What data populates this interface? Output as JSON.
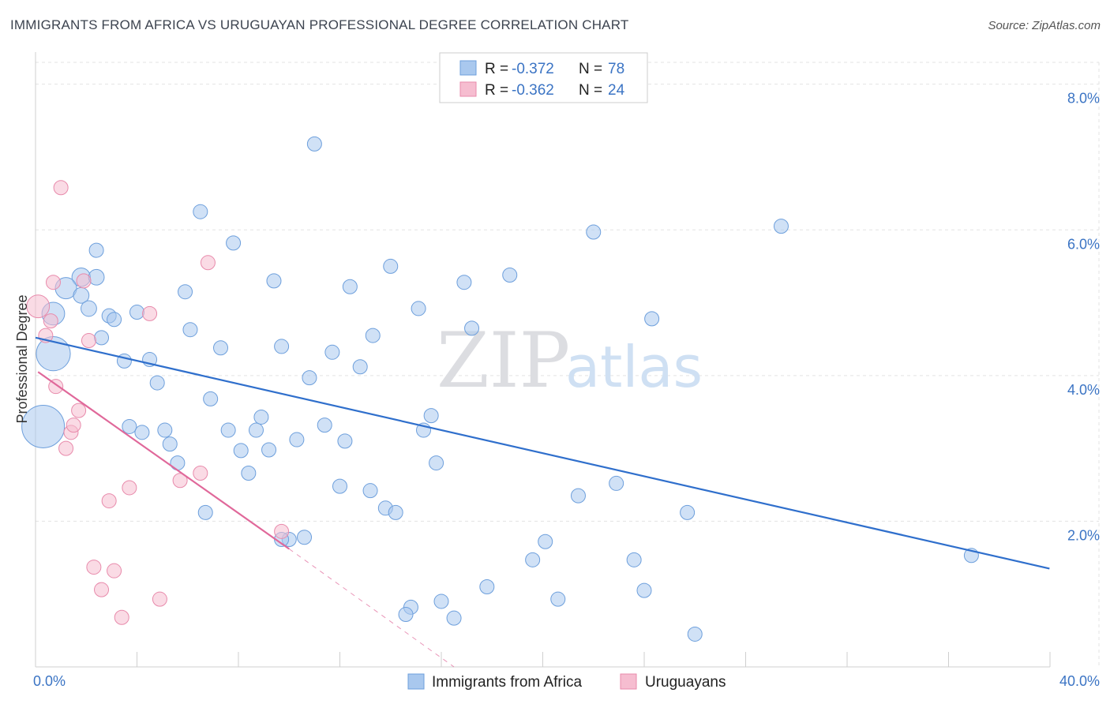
{
  "title": "IMMIGRANTS FROM AFRICA VS URUGUAYAN PROFESSIONAL DEGREE CORRELATION CHART",
  "source": "Source: ZipAtlas.com",
  "watermark": {
    "zip": "ZIP",
    "atlas": "atlas"
  },
  "colors": {
    "blue_fill": "#a9c8ee",
    "blue_stroke": "#6d9fdc",
    "blue_line": "#2f6fcc",
    "pink_fill": "#f6bdd0",
    "pink_stroke": "#e88aab",
    "pink_line": "#e0689a",
    "grid": "#e3e3e3",
    "axis_text": "#3b74c4"
  },
  "legend": {
    "rows": [
      {
        "r_label": "R =",
        "r_value": "-0.372",
        "n_label": "N =",
        "n_value": "78"
      },
      {
        "r_label": "R =",
        "r_value": "-0.362",
        "n_label": "N =",
        "n_value": "24"
      }
    ]
  },
  "bottom_legend": [
    "Immigrants from Africa",
    "Uruguayans"
  ],
  "chart_data": {
    "type": "scatter",
    "title": "IMMIGRANTS FROM AFRICA VS URUGUAYAN PROFESSIONAL DEGREE CORRELATION CHART",
    "xlabel": "",
    "ylabel": "Professional Degree",
    "xlim": [
      0,
      40
    ],
    "ylim": [
      0,
      8.3
    ],
    "x_tick_labels": [
      "0.0%",
      "40.0%"
    ],
    "y_ticks": [
      2,
      4,
      6,
      8
    ],
    "y_tick_labels": [
      "2.0%",
      "4.0%",
      "6.0%",
      "8.0%"
    ],
    "grid": true,
    "legend_position": "top-center",
    "series": [
      {
        "name": "Immigrants from Africa",
        "color": "#a9c8ee",
        "trend": {
          "x": [
            0,
            40
          ],
          "y": [
            4.52,
            1.35
          ]
        },
        "points": [
          [
            0.3,
            3.3,
            3
          ],
          [
            0.7,
            4.3,
            2.4
          ],
          [
            0.7,
            4.85,
            1.6
          ],
          [
            1.8,
            5.35,
            1.3
          ],
          [
            1.2,
            5.2,
            1.5
          ],
          [
            2.4,
            5.35,
            1.1
          ],
          [
            1.8,
            5.1,
            1.1
          ],
          [
            2.1,
            4.92,
            1.1
          ],
          [
            2.4,
            5.72,
            1
          ],
          [
            2.6,
            4.52,
            1
          ],
          [
            2.9,
            4.82,
            1
          ],
          [
            3.1,
            4.77,
            1
          ],
          [
            3.5,
            4.2,
            1
          ],
          [
            3.7,
            3.3,
            1
          ],
          [
            4.0,
            4.87,
            1
          ],
          [
            4.2,
            3.22,
            1
          ],
          [
            4.5,
            4.22,
            1
          ],
          [
            4.8,
            3.9,
            1
          ],
          [
            5.1,
            3.25,
            1
          ],
          [
            5.3,
            3.06,
            1
          ],
          [
            5.6,
            2.8,
            1
          ],
          [
            5.9,
            5.15,
            1
          ],
          [
            6.1,
            4.63,
            1
          ],
          [
            6.5,
            6.25,
            1
          ],
          [
            6.7,
            2.12,
            1
          ],
          [
            6.9,
            3.68,
            1
          ],
          [
            7.3,
            4.38,
            1
          ],
          [
            7.6,
            3.25,
            1
          ],
          [
            7.8,
            5.82,
            1
          ],
          [
            8.1,
            2.97,
            1
          ],
          [
            8.4,
            2.66,
            1
          ],
          [
            8.7,
            3.25,
            1
          ],
          [
            8.9,
            3.43,
            1
          ],
          [
            9.2,
            2.98,
            1
          ],
          [
            9.4,
            5.3,
            1
          ],
          [
            9.7,
            4.4,
            1
          ],
          [
            10.0,
            1.75,
            1
          ],
          [
            10.3,
            3.12,
            1
          ],
          [
            10.6,
            1.78,
            1
          ],
          [
            10.8,
            3.97,
            1
          ],
          [
            11.0,
            7.18,
            1
          ],
          [
            11.4,
            3.32,
            1
          ],
          [
            11.7,
            4.32,
            1
          ],
          [
            12.0,
            2.48,
            1
          ],
          [
            12.2,
            3.1,
            1
          ],
          [
            12.4,
            5.22,
            1
          ],
          [
            12.8,
            4.12,
            1
          ],
          [
            13.2,
            2.42,
            1
          ],
          [
            13.3,
            4.55,
            1
          ],
          [
            13.8,
            2.18,
            1
          ],
          [
            14.0,
            5.5,
            1
          ],
          [
            14.2,
            2.12,
            1
          ],
          [
            14.8,
            0.82,
            1
          ],
          [
            14.6,
            0.72,
            1
          ],
          [
            15.1,
            4.92,
            1
          ],
          [
            15.3,
            3.25,
            1
          ],
          [
            15.6,
            3.45,
            1
          ],
          [
            15.8,
            2.8,
            1
          ],
          [
            16.0,
            0.9,
            1
          ],
          [
            16.5,
            0.67,
            1
          ],
          [
            16.9,
            5.28,
            1
          ],
          [
            17.2,
            4.65,
            1
          ],
          [
            17.8,
            1.1,
            1
          ],
          [
            18.7,
            5.38,
            1
          ],
          [
            19.6,
            1.47,
            1
          ],
          [
            20.1,
            1.72,
            1
          ],
          [
            20.6,
            0.93,
            1
          ],
          [
            21.4,
            2.35,
            1
          ],
          [
            22.0,
            5.97,
            1
          ],
          [
            22.9,
            2.52,
            1
          ],
          [
            23.6,
            1.47,
            1
          ],
          [
            24.0,
            1.05,
            1
          ],
          [
            24.3,
            4.78,
            1
          ],
          [
            25.7,
            2.12,
            1
          ],
          [
            26.0,
            0.45,
            1
          ],
          [
            29.4,
            6.05,
            1
          ],
          [
            36.9,
            1.53,
            1
          ],
          [
            9.7,
            1.75,
            1
          ]
        ]
      },
      {
        "name": "Uruguayans",
        "color": "#f6bdd0",
        "trend": {
          "x": [
            0.1,
            10.0
          ],
          "y": [
            4.05,
            1.62
          ],
          "dashed_x": [
            10.0,
            16.5
          ],
          "dashed_y": [
            1.62,
            0.0
          ]
        },
        "points": [
          [
            0.1,
            4.95,
            1.6
          ],
          [
            0.4,
            4.55,
            1
          ],
          [
            0.6,
            4.75,
            1
          ],
          [
            0.7,
            5.28,
            1
          ],
          [
            0.8,
            3.85,
            1
          ],
          [
            1.0,
            6.58,
            1
          ],
          [
            1.2,
            3.0,
            1
          ],
          [
            1.4,
            3.22,
            1
          ],
          [
            1.5,
            3.32,
            1
          ],
          [
            1.7,
            3.52,
            1
          ],
          [
            1.9,
            5.3,
            1
          ],
          [
            2.1,
            4.48,
            1
          ],
          [
            2.3,
            1.37,
            1
          ],
          [
            2.6,
            1.06,
            1
          ],
          [
            2.9,
            2.28,
            1
          ],
          [
            3.1,
            1.32,
            1
          ],
          [
            3.4,
            0.68,
            1
          ],
          [
            3.7,
            2.46,
            1
          ],
          [
            4.5,
            4.85,
            1
          ],
          [
            4.9,
            0.93,
            1
          ],
          [
            5.7,
            2.56,
            1
          ],
          [
            6.5,
            2.66,
            1
          ],
          [
            6.8,
            5.55,
            1
          ],
          [
            9.7,
            1.86,
            1
          ]
        ]
      }
    ]
  }
}
